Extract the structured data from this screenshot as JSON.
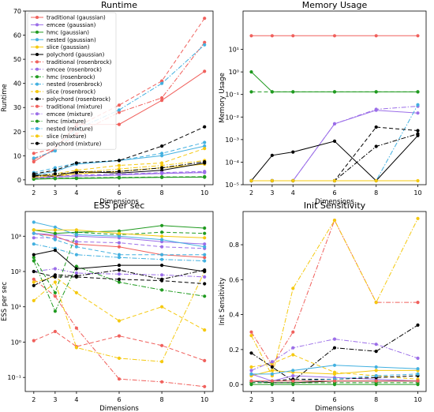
{
  "x_values": [
    2,
    3,
    4,
    6,
    8,
    10
  ],
  "colors": {
    "traditional": "#f0605c",
    "emcee": "#9b6ee8",
    "hmc": "#1f9a1f",
    "nested": "#42b0e0",
    "slice": "#f5c90f",
    "polychord": "#000000"
  },
  "chart_data": [
    {
      "type": "line",
      "title": "Runtime",
      "xlabel": "Dimensions",
      "ylabel": "Runtime",
      "yscale": "linear",
      "ylim": [
        -2,
        70
      ],
      "yticks": [
        0,
        10,
        20,
        30,
        40,
        50,
        60,
        70
      ],
      "ytick_labels": [
        "0",
        "10",
        "20",
        "30",
        "40",
        "50",
        "60",
        "70"
      ],
      "legend_position": "upper-left",
      "series": [
        {
          "name": "traditional (gaussian)",
          "family": "traditional",
          "style": "solid",
          "values": [
            7.5,
            13,
            23,
            23,
            33,
            45
          ]
        },
        {
          "name": "emcee (gaussian)",
          "family": "emcee",
          "style": "solid",
          "values": [
            0.8,
            1.2,
            1.5,
            2.0,
            2.6,
            3.0
          ]
        },
        {
          "name": "hmc (gaussian)",
          "family": "hmc",
          "style": "solid",
          "values": [
            0.3,
            0.5,
            0.6,
            0.8,
            1.0,
            1.1
          ]
        },
        {
          "name": "nested (gaussian)",
          "family": "nested",
          "style": "solid",
          "values": [
            2.0,
            3.5,
            6.5,
            8.0,
            10.0,
            14.0
          ]
        },
        {
          "name": "slice (gaussian)",
          "family": "slice",
          "style": "solid",
          "values": [
            1.0,
            1.5,
            2.5,
            3.5,
            5.0,
            6.5
          ]
        },
        {
          "name": "polychord (gaussian)",
          "family": "polychord",
          "style": "solid",
          "values": [
            2.0,
            1.5,
            3.5,
            2.8,
            4.0,
            7.0
          ]
        },
        {
          "name": "traditional (rosenbrock)",
          "family": "traditional",
          "style": "dashed",
          "values": [
            11,
            13,
            22,
            31,
            41,
            67
          ]
        },
        {
          "name": "emcee (rosenbrock)",
          "family": "emcee",
          "style": "dashed",
          "values": [
            1.0,
            1.4,
            2.0,
            2.4,
            3.0,
            3.5
          ]
        },
        {
          "name": "hmc (rosenbrock)",
          "family": "hmc",
          "style": "dashed",
          "values": [
            0.5,
            0.7,
            0.8,
            1.0,
            1.2,
            1.3
          ]
        },
        {
          "name": "nested (rosenbrock)",
          "family": "nested",
          "style": "dashed",
          "values": [
            3.0,
            5.0,
            7.0,
            8.0,
            11.0,
            15.5
          ]
        },
        {
          "name": "slice (rosenbrock)",
          "family": "slice",
          "style": "dashed",
          "values": [
            1.5,
            2.5,
            4.0,
            6.0,
            7.0,
            13.0
          ]
        },
        {
          "name": "polychord (rosenbrock)",
          "family": "polychord",
          "style": "dashed",
          "values": [
            2.5,
            4.0,
            7.0,
            8.0,
            14.0,
            22.0
          ]
        },
        {
          "name": "traditional (mixture)",
          "family": "traditional",
          "style": "dashdot",
          "values": [
            8.5,
            12.5,
            19,
            28,
            34,
            57
          ]
        },
        {
          "name": "emcee (mixture)",
          "family": "emcee",
          "style": "dashdot",
          "values": [
            0.9,
            1.1,
            1.6,
            2.2,
            2.8,
            3.2
          ]
        },
        {
          "name": "hmc (mixture)",
          "family": "hmc",
          "style": "dashdot",
          "values": [
            0.4,
            0.6,
            0.7,
            0.9,
            1.1,
            1.2
          ]
        },
        {
          "name": "nested (mixture)",
          "family": "nested",
          "style": "dashdot",
          "values": [
            9,
            12,
            21,
            29,
            40,
            56
          ]
        },
        {
          "name": "slice (mixture)",
          "family": "slice",
          "style": "dashdot",
          "values": [
            1.2,
            2.0,
            3.0,
            4.5,
            6.0,
            8.0
          ]
        },
        {
          "name": "polychord (mixture)",
          "family": "polychord",
          "style": "dashdot",
          "values": [
            1.5,
            2.5,
            3.0,
            3.5,
            5.0,
            7.5
          ]
        }
      ]
    },
    {
      "type": "line",
      "title": "Memory Usage",
      "xlabel": "Dimensions",
      "ylabel": "Memory Usage",
      "yscale": "log",
      "ylim": [
        1e-05,
        500
      ],
      "yticks": [
        1e-05,
        0.0001,
        0.001,
        0.01,
        0.1,
        1,
        10
      ],
      "ytick_labels": [
        "10⁻⁵",
        "10⁻⁴",
        "10⁻³",
        "10⁻²",
        "10⁻¹",
        "10⁰",
        "10¹"
      ],
      "series": [
        {
          "family": "traditional",
          "style": "solid",
          "values": [
            40,
            40,
            40,
            40,
            40,
            40
          ]
        },
        {
          "family": "hmc",
          "style": "solid",
          "values": [
            1.0,
            0.13,
            0.13,
            0.13,
            0.13,
            0.13
          ]
        },
        {
          "family": "hmc",
          "style": "dashed",
          "values": [
            0.13,
            0.13,
            0.13,
            0.13,
            0.13,
            0.13
          ]
        },
        {
          "family": "emcee",
          "style": "solid",
          "values": [
            1.5e-05,
            1.5e-05,
            1.5e-05,
            0.005,
            0.02,
            0.015
          ]
        },
        {
          "family": "emcee",
          "style": "dashdot",
          "values": [
            1.5e-05,
            1.5e-05,
            1.5e-05,
            0.005,
            0.022,
            0.03
          ]
        },
        {
          "family": "nested",
          "style": "dashdot",
          "values": [
            1.5e-05,
            1.5e-05,
            1.5e-05,
            1.5e-05,
            1.5e-05,
            0.035
          ]
        },
        {
          "family": "polychord",
          "style": "solid",
          "values": [
            1.5e-05,
            0.0002,
            0.00028,
            0.00085,
            1.5e-05,
            0.0015
          ]
        },
        {
          "family": "polychord",
          "style": "dashed",
          "values": [
            1.5e-05,
            1.5e-05,
            1.5e-05,
            1.5e-05,
            0.0036,
            0.0025
          ]
        },
        {
          "family": "polychord",
          "style": "dashdot",
          "values": [
            1.5e-05,
            1.5e-05,
            1.5e-05,
            1.5e-05,
            0.0005,
            0.0018
          ]
        },
        {
          "family": "slice",
          "style": "solid",
          "values": [
            1.5e-05,
            1.5e-05,
            1.5e-05,
            1.5e-05,
            1.5e-05,
            1.5e-05
          ]
        }
      ]
    },
    {
      "type": "line",
      "title": "ESS per sec",
      "xlabel": "Dimensions",
      "ylabel": "ESS per sec",
      "yscale": "log",
      "ylim": [
        0.04,
        5000
      ],
      "yticks": [
        0.1,
        1,
        10,
        100,
        1000
      ],
      "ytick_labels": [
        "10⁻¹",
        "10⁰",
        "10¹",
        "10²",
        "10³"
      ],
      "series": [
        {
          "family": "traditional",
          "style": "dashed",
          "values": [
            1.1,
            2.0,
            0.75,
            1.5,
            0.8,
            0.3
          ]
        },
        {
          "family": "traditional",
          "style": "dashdot",
          "values": [
            60,
            20,
            2.5,
            0.09,
            0.075,
            0.055
          ]
        },
        {
          "family": "traditional",
          "style": "solid",
          "values": [
            1200,
            1000,
            600,
            500,
            300,
            250
          ]
        },
        {
          "family": "emcee",
          "style": "solid",
          "values": [
            1200,
            1100,
            1000,
            900,
            700,
            600
          ]
        },
        {
          "family": "emcee",
          "style": "dashed",
          "values": [
            900,
            900,
            700,
            650,
            500,
            450
          ]
        },
        {
          "family": "emcee",
          "style": "dashdot",
          "values": [
            100,
            120,
            90,
            85,
            80,
            70
          ]
        },
        {
          "family": "hmc",
          "style": "solid",
          "values": [
            1500,
            1200,
            1300,
            1400,
            2000,
            1700
          ]
        },
        {
          "family": "hmc",
          "style": "dashed",
          "values": [
            250,
            25,
            1300,
            1100,
            1300,
            1200
          ]
        },
        {
          "family": "hmc",
          "style": "dashdot",
          "values": [
            200,
            7.5,
            140,
            50,
            30,
            20
          ]
        },
        {
          "family": "nested",
          "style": "solid",
          "values": [
            2500,
            1800,
            1100,
            1000,
            800,
            500
          ]
        },
        {
          "family": "nested",
          "style": "dashed",
          "values": [
            1200,
            800,
            500,
            300,
            300,
            300
          ]
        },
        {
          "family": "nested",
          "style": "dashdot",
          "values": [
            600,
            450,
            300,
            250,
            220,
            200
          ]
        },
        {
          "family": "slice",
          "style": "solid",
          "values": [
            1500,
            1500,
            1500,
            1200,
            1000,
            900
          ]
        },
        {
          "family": "slice",
          "style": "dashed",
          "values": [
            50,
            70,
            25,
            4,
            10,
            2.2
          ]
        },
        {
          "family": "slice",
          "style": "dashdot",
          "values": [
            15,
            50,
            0.7,
            0.35,
            0.28,
            100
          ]
        },
        {
          "family": "polychord",
          "style": "solid",
          "values": [
            300,
            400,
            120,
            150,
            150,
            100
          ]
        },
        {
          "family": "polychord",
          "style": "dashed",
          "values": [
            100,
            70,
            70,
            60,
            55,
            45
          ]
        },
        {
          "family": "polychord",
          "style": "dashdot",
          "values": [
            40,
            80,
            75,
            110,
            60,
            110
          ]
        }
      ]
    },
    {
      "type": "line",
      "title": "Init Sensitivity",
      "xlabel": "Dimensions",
      "ylabel": "Init Sensitivity",
      "yscale": "linear",
      "ylim": [
        -0.04,
        0.99
      ],
      "yticks": [
        0.0,
        0.2,
        0.4,
        0.6,
        0.8
      ],
      "ytick_labels": [
        "0.0",
        "0.2",
        "0.4",
        "0.6",
        "0.8"
      ],
      "series": [
        {
          "family": "traditional",
          "style": "dashdot",
          "values": [
            0.3,
            0.11,
            0.3,
            0.94,
            0.47,
            0.47
          ]
        },
        {
          "family": "slice",
          "style": "dashdot",
          "values": [
            0.28,
            0.05,
            0.55,
            0.94,
            0.47,
            0.95
          ]
        },
        {
          "family": "slice",
          "style": "dashed",
          "values": [
            0.1,
            0.12,
            0.17,
            0.07,
            0.05,
            0.03
          ]
        },
        {
          "family": "slice",
          "style": "solid",
          "values": [
            0.05,
            0.08,
            0.07,
            0.06,
            0.08,
            0.08
          ]
        },
        {
          "family": "emcee",
          "style": "dashdot",
          "values": [
            0.08,
            0.13,
            0.21,
            0.26,
            0.23,
            0.15
          ]
        },
        {
          "family": "emcee",
          "style": "solid",
          "values": [
            0.06,
            0.02,
            0.05,
            0.04,
            0.03,
            0.02
          ]
        },
        {
          "family": "polychord",
          "style": "dashdot",
          "values": [
            0.18,
            0.1,
            0.02,
            0.21,
            0.19,
            0.34
          ]
        },
        {
          "family": "polychord",
          "style": "solid",
          "values": [
            0.02,
            0.01,
            0.01,
            0.02,
            0.02,
            0.02
          ]
        },
        {
          "family": "polychord",
          "style": "dashed",
          "values": [
            0.01,
            0.02,
            0.03,
            0.03,
            0.04,
            0.05
          ]
        },
        {
          "family": "nested",
          "style": "solid",
          "values": [
            0.06,
            0.06,
            0.08,
            0.11,
            0.1,
            0.09
          ]
        },
        {
          "family": "nested",
          "style": "dashed",
          "values": [
            0.01,
            0.02,
            0.02,
            0.03,
            0.05,
            0.06
          ]
        },
        {
          "family": "hmc",
          "style": "solid",
          "values": [
            0.0,
            0.0,
            0.0,
            0.0,
            0.0,
            0.0
          ]
        },
        {
          "family": "hmc",
          "style": "dashed",
          "values": [
            0.01,
            0.01,
            0.01,
            0.01,
            0.01,
            0.01
          ]
        },
        {
          "family": "traditional",
          "style": "solid",
          "values": [
            0.02,
            0.02,
            0.02,
            0.02,
            0.02,
            0.02
          ]
        }
      ]
    }
  ]
}
